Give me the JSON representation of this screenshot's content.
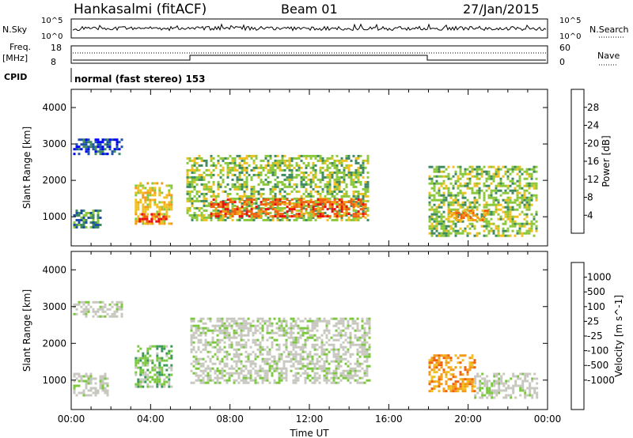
{
  "header": {
    "station": "Hankasalmi (fitACF)",
    "beam": "Beam 01",
    "date": "27/Jan/2015"
  },
  "strips": {
    "nsky_label": "N.Sky",
    "nsearch_label": "N.Search",
    "count_top_tick": "10^5",
    "count_bottom_tick": "10^0",
    "freq_label_1": "Freq.",
    "freq_label_2": "[MHz]",
    "freq_ticks": [
      "18",
      "8"
    ],
    "nave_label": "Nave",
    "nave_ticks": [
      "60",
      "0"
    ],
    "cpid_label": "CPID",
    "cpid_text": "normal (fast stereo) 153"
  },
  "chart_data": [
    {
      "type": "heatmap",
      "panel": "power",
      "ylabel": "Slant Range [km]",
      "yticks": [
        "1000",
        "2000",
        "3000",
        "4000"
      ],
      "ylim": [
        200,
        4500
      ],
      "xlim": [
        0,
        24
      ],
      "colorbar_label": "Power [dB]",
      "colorbar_ticks": [
        "4",
        "8",
        "12",
        "16",
        "20",
        "24",
        "28"
      ],
      "colors": [
        "#0000ff",
        "#1b4fa8",
        "#3f8a60",
        "#8cc83c",
        "#f0c020",
        "#f39a18",
        "#f06010",
        "#e81010"
      ],
      "regions": [
        {
          "x": [
            0.1,
            2.6
          ],
          "y": [
            2700,
            3150
          ],
          "level": 1
        },
        {
          "x": [
            0.1,
            1.5
          ],
          "y": [
            700,
            1200
          ],
          "level": 2
        },
        {
          "x": [
            3.2,
            5.0
          ],
          "y": [
            800,
            1950
          ],
          "level": 4
        },
        {
          "x": [
            3.4,
            4.8
          ],
          "y": [
            850,
            1100
          ],
          "level": 7
        },
        {
          "x": [
            5.8,
            15.0
          ],
          "y": [
            900,
            2700
          ],
          "level": 3
        },
        {
          "x": [
            7.0,
            14.8
          ],
          "y": [
            1000,
            1500
          ],
          "level": 6
        },
        {
          "x": [
            18.0,
            23.5
          ],
          "y": [
            500,
            2400
          ],
          "level": 3
        },
        {
          "x": [
            19.0,
            21.0
          ],
          "y": [
            900,
            1200
          ],
          "level": 5
        }
      ]
    },
    {
      "type": "heatmap",
      "panel": "velocity",
      "ylabel": "Slant Range [km]",
      "yticks": [
        "1000",
        "2000",
        "3000",
        "4000"
      ],
      "ylim": [
        200,
        4500
      ],
      "xlim": [
        0,
        24
      ],
      "xticks": [
        "00:00",
        "04:00",
        "08:00",
        "12:00",
        "16:00",
        "20:00",
        "00:00"
      ],
      "xlabel": "Time UT",
      "colorbar_label": "Velocity [m s^-1]",
      "colorbar_ticks": [
        "1000",
        "500",
        "100",
        "25",
        "-25",
        "-100",
        "-500",
        "-1000"
      ],
      "colors": [
        "#1c3ca8",
        "#2a6a8a",
        "#3a9a5a",
        "#7cc840",
        "#c8c8c0",
        "#c8c8c0",
        "#f0c020",
        "#f39a18",
        "#f06010",
        "#e81010"
      ],
      "regions": [
        {
          "x": [
            0.1,
            2.6
          ],
          "y": [
            2700,
            3150
          ],
          "level": 4
        },
        {
          "x": [
            0.1,
            1.8
          ],
          "y": [
            600,
            1200
          ],
          "level": 4
        },
        {
          "x": [
            3.2,
            5.0
          ],
          "y": [
            800,
            1950
          ],
          "level": 3
        },
        {
          "x": [
            6.0,
            15.0
          ],
          "y": [
            900,
            2700
          ],
          "level": 4
        },
        {
          "x": [
            18.0,
            20.3
          ],
          "y": [
            700,
            1700
          ],
          "level": 7
        },
        {
          "x": [
            20.3,
            23.5
          ],
          "y": [
            500,
            1200
          ],
          "level": 4
        }
      ]
    }
  ]
}
